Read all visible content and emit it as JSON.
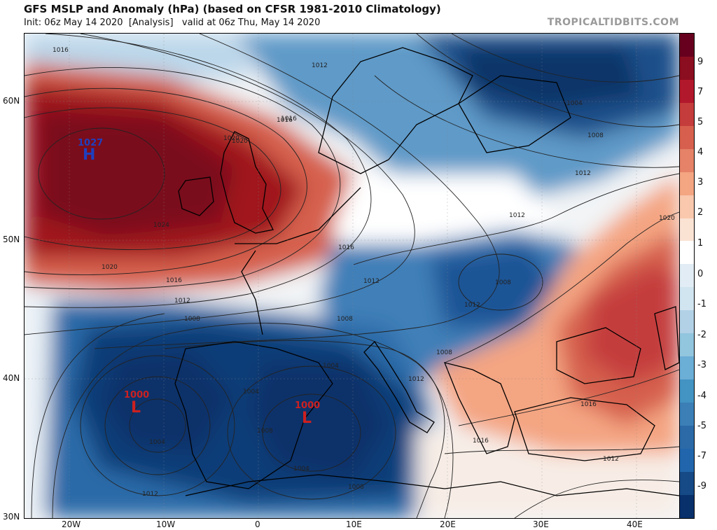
{
  "header": {
    "title": "GFS MSLP and Anomaly (hPa) (based on CFSR 1981-2010 Climatology)",
    "subtitle": "Init: 06z May 14 2020  [Analysis]   valid at 06z Thu, May 14 2020",
    "brand": "TROPICALTIDBITS.COM"
  },
  "axes": {
    "lat_labels": [
      "60N",
      "50N",
      "40N",
      "30N"
    ],
    "lon_labels": [
      "20W",
      "10W",
      "0",
      "10E",
      "20E",
      "30E",
      "40E"
    ]
  },
  "colorbar": {
    "labels": [
      "9",
      "7",
      "5",
      "4",
      "3",
      "2",
      "1",
      "0",
      "-1",
      "-2",
      "-3",
      "-4",
      "-5",
      "-7",
      "-9"
    ],
    "colors": [
      "#67001f",
      "#8b0d20",
      "#b2182b",
      "#c43c3c",
      "#d6604d",
      "#e58267",
      "#f4a582",
      "#f9c8ad",
      "#fbe3d4",
      "#ffffff",
      "#e1ecf4",
      "#d1e5f0",
      "#b2d1e6",
      "#92c5de",
      "#6baed6",
      "#4393c3",
      "#3b7fb6",
      "#2c6aa7",
      "#2166ac",
      "#164a86",
      "#08306b"
    ]
  },
  "systems": {
    "high": {
      "pressure": "1027",
      "letter": "H",
      "color": "#1f3fbf"
    },
    "low_west": {
      "pressure": "1000",
      "letter": "L",
      "color": "#cc2020"
    },
    "low_med": {
      "pressure": "1000",
      "letter": "L",
      "color": "#cc2020"
    }
  },
  "isobar_labels": [
    "1016",
    "1012",
    "1016",
    "1020",
    "1024",
    "1020",
    "1016",
    "1012",
    "1008",
    "1004",
    "1004",
    "1008",
    "1004",
    "1008",
    "1012",
    "1016",
    "1012",
    "1008",
    "1012",
    "1004",
    "1008",
    "1016",
    "1012",
    "1020",
    "1016",
    "1012",
    "1008",
    "1012",
    "1008",
    "1016",
    "1020",
    "1004",
    "1012"
  ]
}
